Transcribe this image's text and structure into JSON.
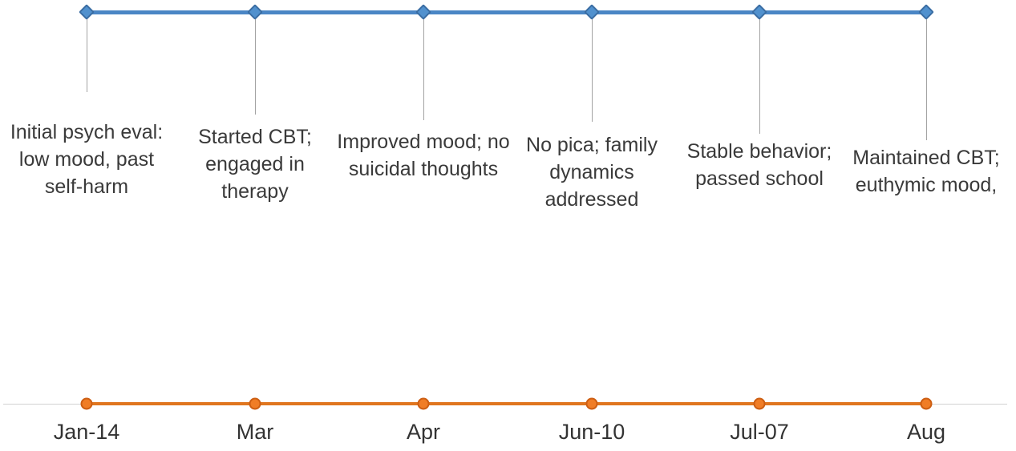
{
  "chart_data": {
    "type": "timeline",
    "title": "",
    "orientation": "horizontal",
    "events": [
      {
        "date": "Jan-14",
        "label": "Initial psych eval:\nlow mood, past\nself-harm"
      },
      {
        "date": "Mar",
        "label": "Started CBT;\nengaged in\ntherapy"
      },
      {
        "date": "Apr",
        "label": "Improved mood; no\nsuicidal thoughts"
      },
      {
        "date": "Jun-10",
        "label": "No pica; family\ndynamics\naddressed"
      },
      {
        "date": "Jul-07",
        "label": "Stable behavior;\npassed school"
      },
      {
        "date": "Aug",
        "label": "Maintained CBT;\neuthymic mood,"
      }
    ],
    "legend": "off",
    "grid": "off",
    "colors": {
      "top_series_line": "#4a86c5",
      "top_marker_fill": "#5191ce",
      "top_marker_border": "#3a6da3",
      "bottom_series_line": "#e0761f",
      "bottom_marker_fill": "#f07d26",
      "bottom_marker_border": "#cd5e12",
      "leader_line": "#a3a3a3",
      "axis_line": "#d2d2d2",
      "label_text": "#3a3a3a",
      "date_text": "#333333"
    }
  }
}
